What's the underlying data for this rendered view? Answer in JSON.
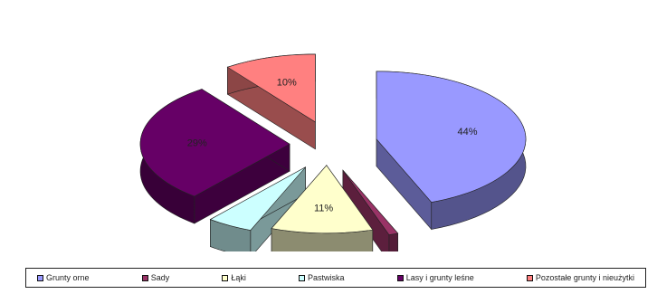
{
  "chart_data": {
    "type": "pie",
    "style": "3d-exploded",
    "title": "",
    "categories": [
      "Grunty orne",
      "Sady",
      "Łąki",
      "Pastwiska",
      "Lasy i grunty leśne",
      "Pozostałe grunty i nieużytki"
    ],
    "values": [
      44,
      1,
      11,
      5,
      29,
      10
    ],
    "labels": [
      "44%",
      "1%",
      "11%",
      "5%",
      "29%",
      "10%"
    ],
    "colors": [
      "#9999ff",
      "#993366",
      "#ffffcc",
      "#ccffff",
      "#660066",
      "#ff8080"
    ],
    "legend_position": "bottom"
  }
}
